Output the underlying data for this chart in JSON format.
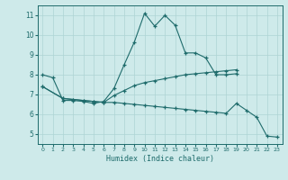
{
  "title": "",
  "xlabel": "Humidex (Indice chaleur)",
  "background_color": "#ceeaea",
  "line_color": "#1e6b6b",
  "grid_color": "#add4d4",
  "xlim": [
    -0.5,
    23.5
  ],
  "ylim": [
    4.5,
    11.5
  ],
  "yticks": [
    5,
    6,
    7,
    8,
    9,
    10,
    11
  ],
  "xticks": [
    0,
    1,
    2,
    3,
    4,
    5,
    6,
    7,
    8,
    9,
    10,
    11,
    12,
    13,
    14,
    15,
    16,
    17,
    18,
    19,
    20,
    21,
    22,
    23
  ],
  "lines": [
    {
      "x": [
        0,
        1,
        2,
        3,
        4,
        5,
        6,
        7,
        8,
        9,
        10,
        11,
        12,
        13,
        14,
        15,
        16,
        17,
        18,
        19
      ],
      "y": [
        8.0,
        7.85,
        6.7,
        6.7,
        6.65,
        6.55,
        6.65,
        7.3,
        8.5,
        9.65,
        11.1,
        10.45,
        11.0,
        10.5,
        9.1,
        9.1,
        8.85,
        8.0,
        8.0,
        8.05
      ]
    },
    {
      "x": [
        0,
        2,
        3,
        4,
        5,
        6,
        7,
        8,
        9,
        10,
        11,
        12,
        13,
        14,
        15,
        16,
        17,
        18,
        19
      ],
      "y": [
        7.4,
        6.8,
        6.75,
        6.7,
        6.65,
        6.6,
        6.95,
        7.2,
        7.45,
        7.6,
        7.7,
        7.8,
        7.9,
        8.0,
        8.05,
        8.1,
        8.15,
        8.2,
        8.25
      ]
    },
    {
      "x": [
        0,
        2,
        3,
        4,
        5,
        6,
        7,
        8,
        9,
        10,
        11,
        12,
        13,
        14,
        15,
        16,
        17,
        18,
        19,
        20,
        21,
        22,
        23
      ],
      "y": [
        7.4,
        6.8,
        6.75,
        6.7,
        6.65,
        6.6,
        6.6,
        6.55,
        6.5,
        6.45,
        6.4,
        6.35,
        6.3,
        6.25,
        6.2,
        6.15,
        6.1,
        6.05,
        6.55,
        6.2,
        5.85,
        4.9,
        4.85
      ]
    }
  ]
}
